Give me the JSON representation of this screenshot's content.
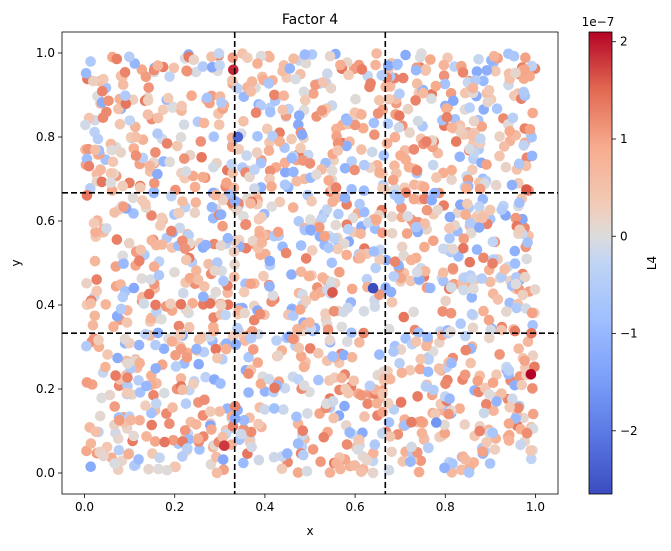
{
  "chart_data": {
    "type": "scatter",
    "title": "Factor 4",
    "xlabel": "x",
    "ylabel": "y",
    "xlim": [
      -0.05,
      1.05
    ],
    "ylim": [
      -0.05,
      1.05
    ],
    "xticks": [
      0.0,
      0.2,
      0.4,
      0.6,
      0.8,
      1.0
    ],
    "xtick_labels": [
      "0.0",
      "0.2",
      "0.4",
      "0.6",
      "0.8",
      "1.0"
    ],
    "yticks": [
      0.0,
      0.2,
      0.4,
      0.6,
      0.8,
      1.0
    ],
    "ytick_labels": [
      "0.0",
      "0.2",
      "0.4",
      "0.6",
      "0.8",
      "1.0"
    ],
    "grid": false,
    "reference_lines": {
      "vertical": [
        0.333,
        0.667
      ],
      "horizontal": [
        0.333,
        0.667
      ],
      "style": "dashed",
      "color": "#000000"
    },
    "colorbar": {
      "label": "L4",
      "colormap": "coolwarm",
      "range": [
        -2.65e-07,
        2.1e-07
      ],
      "ticks": [
        -2,
        -1,
        0,
        1,
        2
      ],
      "tick_labels": [
        "−2",
        "−1",
        "0",
        "1",
        "2"
      ],
      "offset_text": "1e−7"
    },
    "n_points": 1600,
    "points_distribution": "uniform on [0,1]x[0,1]; colour values mostly in [-1.2e-7, 1.4e-7]",
    "notable_points": [
      {
        "x": 0.33,
        "y": 0.96,
        "value": 1.9e-07
      },
      {
        "x": 0.99,
        "y": 0.235,
        "value": 2.1e-07
      },
      {
        "x": 0.98,
        "y": 0.675,
        "value": 1.6e-07
      },
      {
        "x": 0.31,
        "y": 0.065,
        "value": 1.8e-07
      },
      {
        "x": 0.64,
        "y": 0.44,
        "value": -2.65e-07
      },
      {
        "x": 0.34,
        "y": 0.8,
        "value": -2.3e-07
      },
      {
        "x": 0.55,
        "y": 0.43,
        "value": 1.6e-07
      },
      {
        "x": 0.78,
        "y": 0.12,
        "value": -1.6e-07
      }
    ]
  },
  "colors": {
    "cool": "#3b4cc0",
    "neutral": "#dddddd",
    "warm": "#b40426"
  }
}
